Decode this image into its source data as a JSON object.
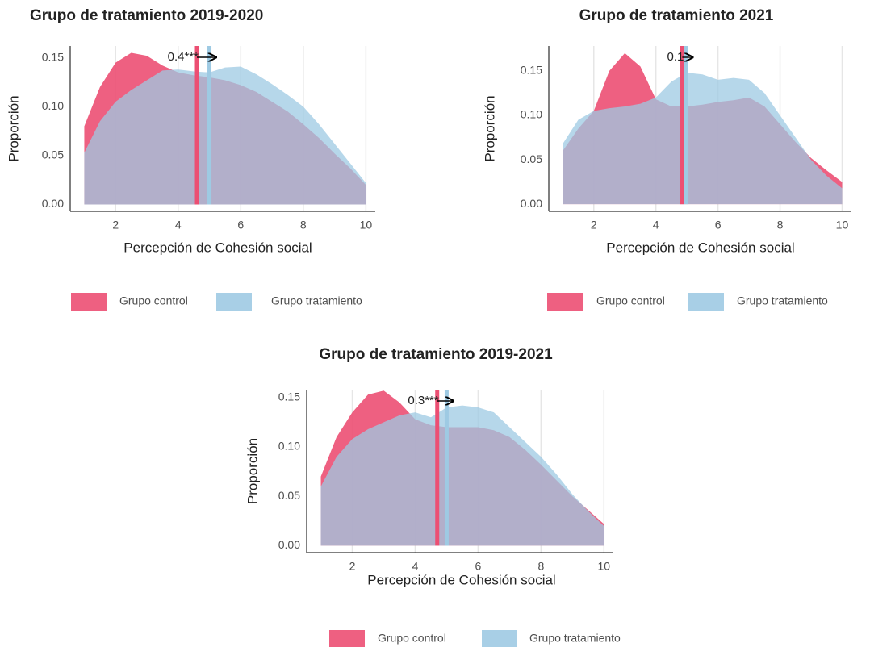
{
  "chart_data": [
    {
      "type": "area",
      "title": "Grupo de tratamiento 2019-2020",
      "xlabel": "Percepción de Cohesión social",
      "ylabel": "Proporción",
      "x": [
        1,
        1.5,
        2,
        2.5,
        3,
        3.5,
        4,
        4.5,
        5,
        5.5,
        6,
        6.5,
        7,
        7.5,
        8,
        8.5,
        9,
        9.5,
        10
      ],
      "series": [
        {
          "name": "Grupo control",
          "color": "#ec4f73",
          "mean": 4.6,
          "values": [
            0.08,
            0.12,
            0.145,
            0.155,
            0.152,
            0.142,
            0.135,
            0.132,
            0.13,
            0.127,
            0.122,
            0.115,
            0.105,
            0.095,
            0.082,
            0.068,
            0.052,
            0.037,
            0.02
          ]
        },
        {
          "name": "Grupo tratamiento",
          "color": "#9ecae3",
          "mean": 5.0,
          "values": [
            0.053,
            0.085,
            0.105,
            0.117,
            0.127,
            0.137,
            0.138,
            0.136,
            0.135,
            0.14,
            0.141,
            0.133,
            0.123,
            0.112,
            0.1,
            0.082,
            0.062,
            0.042,
            0.022
          ]
        }
      ],
      "annotation": "0.4***",
      "xlim": [
        0.55,
        10.3
      ],
      "ylim": [
        -0.007,
        0.162
      ],
      "xticks": [
        2,
        4,
        6,
        8,
        10
      ],
      "yticks": [
        {
          "value": 0,
          "label": "0.00"
        },
        0.05,
        {
          "value": 0.1,
          "label": "0.10"
        },
        0.15
      ],
      "grid": "x"
    },
    {
      "type": "area",
      "title": "Grupo de tratamiento 2021",
      "xlabel": "Percepción de Cohesión social",
      "ylabel": "Proporción",
      "x": [
        1,
        1.5,
        2,
        2.5,
        3,
        3.5,
        4,
        4.5,
        5,
        5.5,
        6,
        6.5,
        7,
        7.5,
        8,
        8.5,
        9,
        9.5,
        10
      ],
      "series": [
        {
          "name": "Grupo control",
          "color": "#ec4f73",
          "mean": 4.85,
          "values": [
            0.06,
            0.085,
            0.105,
            0.15,
            0.17,
            0.155,
            0.118,
            0.11,
            0.11,
            0.112,
            0.115,
            0.117,
            0.12,
            0.11,
            0.09,
            0.07,
            0.052,
            0.038,
            0.025
          ]
        },
        {
          "name": "Grupo tratamiento",
          "color": "#9ecae3",
          "mean": 4.97,
          "values": [
            0.068,
            0.095,
            0.105,
            0.108,
            0.11,
            0.113,
            0.12,
            0.138,
            0.148,
            0.146,
            0.14,
            0.142,
            0.14,
            0.125,
            0.1,
            0.075,
            0.05,
            0.032,
            0.018
          ]
        }
      ],
      "annotation": "0.1",
      "xlim": [
        0.55,
        10.3
      ],
      "ylim": [
        -0.008,
        0.178
      ],
      "xticks": [
        2,
        4,
        6,
        8,
        10
      ],
      "yticks": [
        {
          "value": 0,
          "label": "0.00"
        },
        0.05,
        {
          "value": 0.1,
          "label": "0.10"
        },
        0.15
      ],
      "grid": "x"
    },
    {
      "type": "area",
      "title": "Grupo de tratamiento 2019-2021",
      "xlabel": "Percepción de Cohesión social",
      "ylabel": "Proporción",
      "x": [
        1,
        1.5,
        2,
        2.5,
        3,
        3.5,
        4,
        4.5,
        5,
        5.5,
        6,
        6.5,
        7,
        7.5,
        8,
        8.5,
        9,
        9.5,
        10
      ],
      "series": [
        {
          "name": "Grupo control",
          "color": "#ec4f73",
          "mean": 4.7,
          "values": [
            0.07,
            0.11,
            0.135,
            0.153,
            0.157,
            0.145,
            0.128,
            0.122,
            0.12,
            0.12,
            0.12,
            0.117,
            0.11,
            0.097,
            0.082,
            0.066,
            0.05,
            0.036,
            0.022
          ]
        },
        {
          "name": "Grupo tratamiento",
          "color": "#9ecae3",
          "mean": 5.0,
          "values": [
            0.06,
            0.09,
            0.108,
            0.118,
            0.125,
            0.132,
            0.135,
            0.13,
            0.14,
            0.142,
            0.14,
            0.135,
            0.12,
            0.105,
            0.09,
            0.072,
            0.052,
            0.035,
            0.02
          ]
        }
      ],
      "annotation": "0.3***",
      "xlim": [
        0.55,
        10.3
      ],
      "ylim": [
        -0.007,
        0.158
      ],
      "xticks": [
        2,
        4,
        6,
        8,
        10
      ],
      "yticks": [
        {
          "value": 0,
          "label": "0.00"
        },
        0.05,
        {
          "value": 0.1,
          "label": "0.10"
        },
        0.15
      ],
      "grid": "x"
    }
  ]
}
